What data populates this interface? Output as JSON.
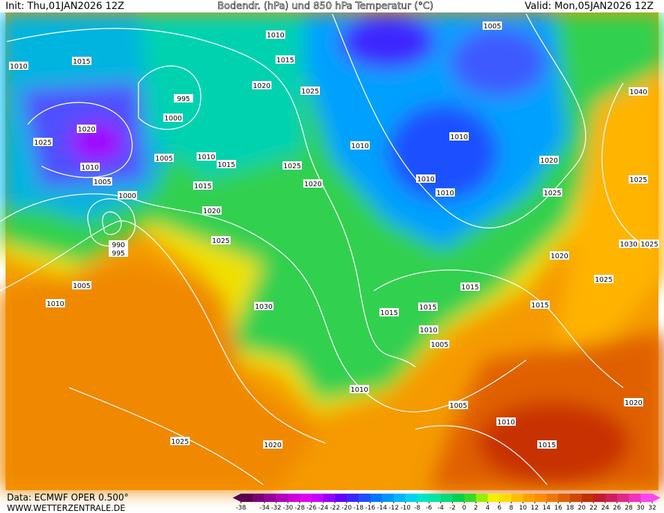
{
  "header": {
    "init": "Init: Thu,01JAN2026 12Z",
    "title": "Bodendr. (hPa) und 850 hPa Temperatur (°C)",
    "valid": "Valid: Mon,05JAN2026 12Z"
  },
  "isobar_labels": [
    "1010",
    "1005",
    "1010",
    "1015",
    "1015",
    "995",
    "1020",
    "1025",
    "1000",
    "1020",
    "1040",
    "1025",
    "1005",
    "1010",
    "1015",
    "1010",
    "1010",
    "1020",
    "1025",
    "1010",
    "1005",
    "1015",
    "1020",
    "1010",
    "1010",
    "1025",
    "1025",
    "1000",
    "1020",
    "1025",
    "990",
    "995",
    "1030",
    "1025",
    "1020",
    "1005",
    "1025",
    "1015",
    "1010",
    "1030",
    "1015",
    "1015",
    "1015",
    "1010",
    "1005",
    "1010",
    "1005",
    "1020",
    "1010",
    "1025",
    "1020",
    "1015"
  ],
  "colorbar": {
    "ticks": [
      -38,
      -34,
      -32,
      -30,
      -28,
      -26,
      -24,
      -22,
      -20,
      -18,
      -16,
      -14,
      -12,
      -10,
      -8,
      -6,
      -4,
      -2,
      0,
      2,
      4,
      6,
      8,
      10,
      12,
      14,
      16,
      18,
      20,
      22,
      24,
      26,
      28,
      30,
      32
    ],
    "colors": [
      "#5a0050",
      "#7a0078",
      "#96009c",
      "#b400c0",
      "#cc00dc",
      "#e000f0",
      "#c800ff",
      "#9600ff",
      "#6400ff",
      "#3c28ff",
      "#1e50ff",
      "#0078ff",
      "#0096ff",
      "#00b4ff",
      "#00d2f0",
      "#00e6c8",
      "#00e6a0",
      "#00dc78",
      "#00d250",
      "#32dc28",
      "#96f000",
      "#f0f000",
      "#ffdc00",
      "#ffbe00",
      "#ffa000",
      "#ff8c00",
      "#f07800",
      "#e06000",
      "#d04800",
      "#c03000",
      "#c01e28",
      "#d01e5a",
      "#e0288c",
      "#f032be",
      "#ff46f0"
    ]
  },
  "footer": {
    "data": "Data: ECMWF OPER 0.500°",
    "site": "WWW.WETTERZENTRALE.DE"
  }
}
